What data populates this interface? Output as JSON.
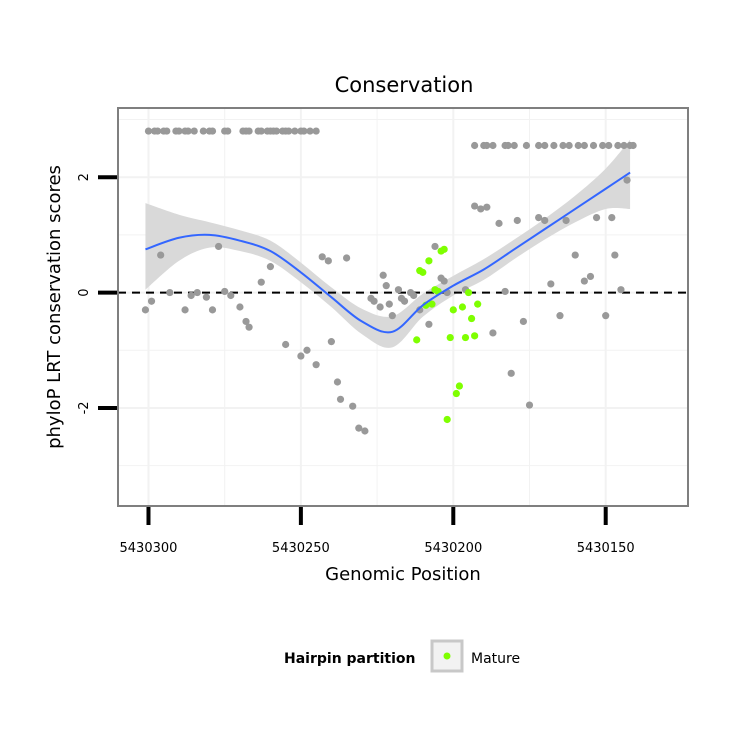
{
  "chart_data": {
    "type": "scatter",
    "title": "Conservation",
    "xlabel": "Genomic Position",
    "ylabel": "phyloP LRT conservation scores",
    "xlim": [
      5430310,
      5430123
    ],
    "ylim": [
      -3.7,
      3.2
    ],
    "x_reversed": true,
    "x_ticks": [
      5430300,
      5430250,
      5430200,
      5430150
    ],
    "x_tick_labels": [
      "5430300",
      "5430250",
      "5430200",
      "5430150"
    ],
    "y_ticks": [
      -2,
      0,
      2
    ],
    "y_tick_labels": [
      "-2",
      "0",
      "2"
    ],
    "reference_line": {
      "y": 0,
      "style": "dashed",
      "color": "#000000"
    },
    "legend": {
      "title": "Hairpin partition",
      "entries": [
        "Mature"
      ],
      "placement": "bottom"
    },
    "colors": {
      "other": "#999999",
      "mature": "#7FFF00",
      "smooth_line": "#3366FF",
      "confidence_band": "#D9D9D9",
      "panel_border": "#7F7F7F",
      "grid": "#F2F2F2"
    },
    "smooth": {
      "x": [
        5430301,
        5430290,
        5430280,
        5430270,
        5430260,
        5430250,
        5430240,
        5430230,
        5430220,
        5430210,
        5430200,
        5430190,
        5430180,
        5430170,
        5430160,
        5430150,
        5430142
      ],
      "y": [
        0.75,
        0.95,
        1.0,
        0.9,
        0.72,
        0.35,
        -0.08,
        -0.5,
        -0.68,
        -0.22,
        0.12,
        0.4,
        0.75,
        1.1,
        1.45,
        1.8,
        2.08
      ],
      "lower": [
        0.05,
        0.55,
        0.78,
        0.72,
        0.55,
        0.18,
        -0.25,
        -0.72,
        -0.95,
        -0.42,
        -0.05,
        0.22,
        0.58,
        0.92,
        1.22,
        1.45,
        1.45
      ],
      "upper": [
        1.55,
        1.35,
        1.22,
        1.08,
        0.9,
        0.52,
        0.09,
        -0.28,
        -0.41,
        -0.02,
        0.29,
        0.58,
        0.92,
        1.28,
        1.68,
        2.15,
        2.65
      ]
    },
    "series": [
      {
        "name": "Other",
        "x": [
          5430300,
          5430298,
          5430297,
          5430295,
          5430294,
          5430291,
          5430290,
          5430288,
          5430287,
          5430285,
          5430282,
          5430280,
          5430279,
          5430275,
          5430274,
          5430269,
          5430268,
          5430267,
          5430264,
          5430263,
          5430261,
          5430260,
          5430259,
          5430258,
          5430256,
          5430255,
          5430254,
          5430252,
          5430250,
          5430249,
          5430247,
          5430245,
          5430301,
          5430299,
          5430296,
          5430293,
          5430288,
          5430286,
          5430284,
          5430281,
          5430279,
          5430277,
          5430275,
          5430273,
          5430270,
          5430268,
          5430267,
          5430263,
          5430260,
          5430255,
          5430250,
          5430248,
          5430245,
          5430243,
          5430241,
          5430240,
          5430238,
          5430237,
          5430235,
          5430233,
          5430231,
          5430229,
          5430227,
          5430226,
          5430224,
          5430223,
          5430222,
          5430221,
          5430220,
          5430218,
          5430217,
          5430216,
          5430214,
          5430213,
          5430211,
          5430208,
          5430206,
          5430205,
          5430204,
          5430203,
          5430202,
          5430196,
          5430193,
          5430191,
          5430189,
          5430187,
          5430185,
          5430183,
          5430181,
          5430179,
          5430177,
          5430175,
          5430172,
          5430170,
          5430168,
          5430165,
          5430163,
          5430160,
          5430157,
          5430155,
          5430153,
          5430150,
          5430148,
          5430147,
          5430145,
          5430143,
          5430193,
          5430190,
          5430189,
          5430187,
          5430183,
          5430182,
          5430180,
          5430176,
          5430172,
          5430170,
          5430167,
          5430164,
          5430162,
          5430159,
          5430157,
          5430154,
          5430151,
          5430149,
          5430146,
          5430144,
          5430142,
          5430141
        ],
        "y": [
          2.8,
          2.8,
          2.8,
          2.8,
          2.8,
          2.8,
          2.8,
          2.8,
          2.8,
          2.8,
          2.8,
          2.8,
          2.8,
          2.8,
          2.8,
          2.8,
          2.8,
          2.8,
          2.8,
          2.8,
          2.8,
          2.8,
          2.8,
          2.8,
          2.8,
          2.8,
          2.8,
          2.8,
          2.8,
          2.8,
          2.8,
          2.8,
          -0.3,
          -0.15,
          0.65,
          0.0,
          -0.3,
          -0.05,
          0.0,
          -0.08,
          -0.3,
          0.8,
          0.02,
          -0.05,
          -0.25,
          -0.5,
          -0.6,
          0.18,
          0.45,
          -0.9,
          -1.1,
          -1.0,
          -1.25,
          0.62,
          0.55,
          -0.85,
          -1.55,
          -1.85,
          0.6,
          -1.97,
          -2.35,
          -2.4,
          -0.1,
          -0.15,
          -0.25,
          0.3,
          0.12,
          -0.2,
          -0.4,
          0.05,
          -0.1,
          -0.15,
          0.0,
          -0.05,
          -0.3,
          -0.55,
          0.8,
          0.02,
          0.25,
          0.2,
          0.0,
          0.05,
          1.5,
          1.45,
          1.48,
          -0.7,
          1.2,
          0.02,
          -1.4,
          1.25,
          -0.5,
          -1.95,
          1.3,
          1.25,
          0.15,
          -0.4,
          1.25,
          0.65,
          0.2,
          0.28,
          1.3,
          -0.4,
          1.3,
          0.65,
          0.05,
          1.95,
          2.55,
          2.55,
          2.55,
          2.55,
          2.55,
          2.55,
          2.55,
          2.55,
          2.55,
          2.55,
          2.55,
          2.55,
          2.55,
          2.55,
          2.55,
          2.55,
          2.55,
          2.55,
          2.55,
          2.55,
          2.55,
          2.55
        ]
      },
      {
        "name": "Mature",
        "x": [
          5430212,
          5430211,
          5430210,
          5430209,
          5430208,
          5430207,
          5430206,
          5430205,
          5430204,
          5430203,
          5430202,
          5430201,
          5430200,
          5430199,
          5430198,
          5430197,
          5430196,
          5430195,
          5430194,
          5430193,
          5430192
        ],
        "y": [
          -0.82,
          0.38,
          0.35,
          -0.22,
          0.55,
          -0.2,
          0.05,
          0.02,
          0.72,
          0.75,
          -2.2,
          -0.78,
          -0.3,
          -1.75,
          -1.62,
          -0.25,
          -0.78,
          0.0,
          -0.45,
          -0.75,
          -0.2
        ]
      }
    ]
  }
}
